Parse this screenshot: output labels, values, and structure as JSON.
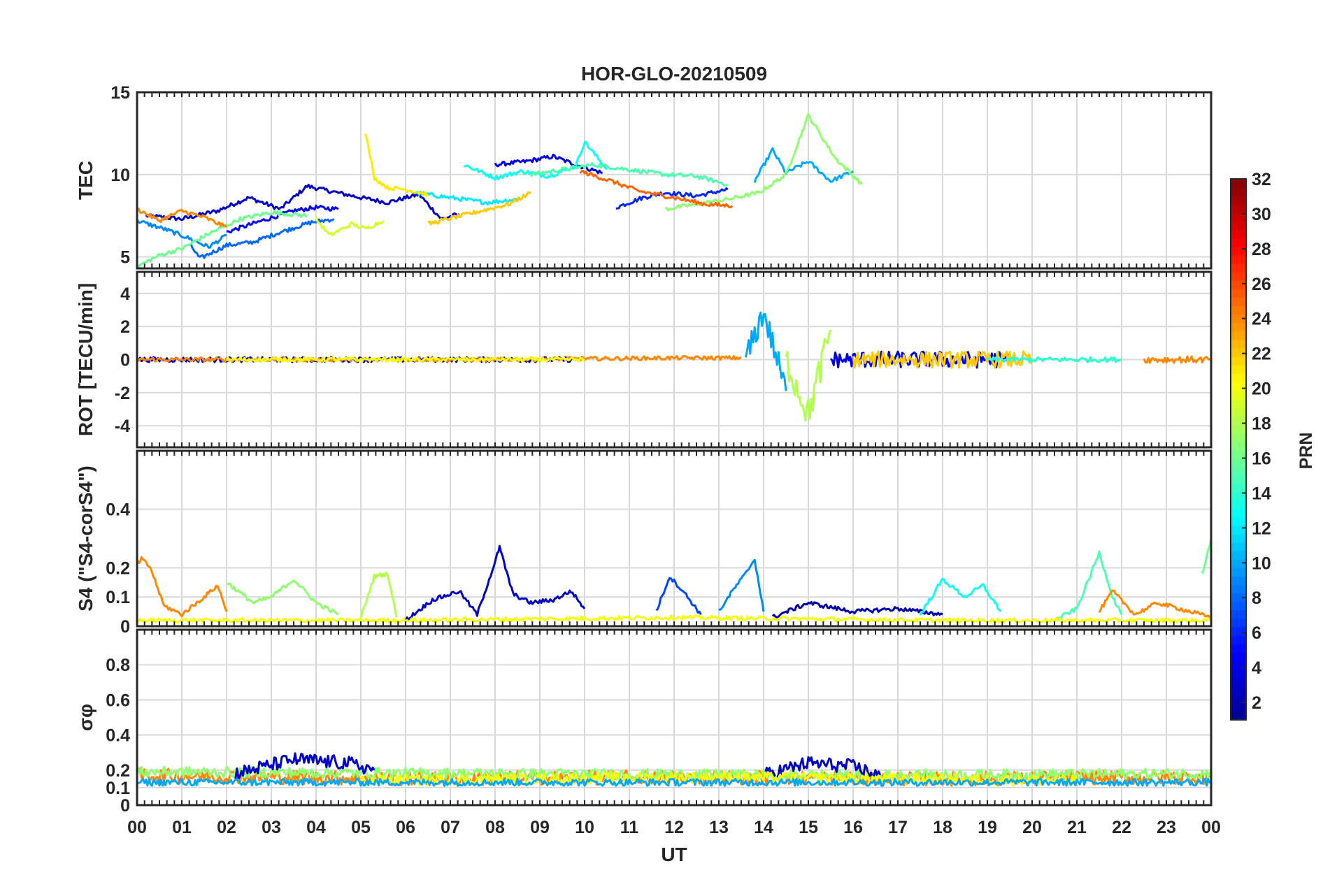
{
  "chart_data": {
    "type": "line",
    "title": "HOR-GLO-20210509",
    "xlabel": "UT",
    "x_tick_labels": [
      "00",
      "01",
      "02",
      "03",
      "04",
      "05",
      "06",
      "07",
      "08",
      "09",
      "10",
      "11",
      "12",
      "13",
      "14",
      "15",
      "16",
      "17",
      "18",
      "19",
      "20",
      "21",
      "22",
      "23",
      "00"
    ],
    "xlim": [
      0,
      24
    ],
    "grid": true,
    "colorbar": {
      "label": "PRN",
      "range": [
        1,
        32
      ],
      "ticks": [
        "2",
        "4",
        "6",
        "8",
        "10",
        "12",
        "14",
        "16",
        "18",
        "20",
        "22",
        "24",
        "26",
        "28",
        "30",
        "32"
      ],
      "colormap": "jet",
      "jet_stops": [
        "#00008f",
        "#0000ff",
        "#00ffff",
        "#ffff00",
        "#ff0000",
        "#800000"
      ]
    },
    "panels": [
      {
        "id": "tec",
        "ylabel": "TEC",
        "ylim": [
          4.3,
          15
        ],
        "yticks": [
          5,
          10,
          15
        ],
        "ytick_labels": [
          "5",
          "10",
          "15"
        ],
        "series": [
          {
            "prn": 3,
            "x": [
              0.2,
              1.0,
              1.8,
              2.5,
              3.2,
              3.8,
              4.3,
              5.0,
              5.6,
              6.3,
              6.8,
              7.2
            ],
            "y": [
              7.5,
              7.3,
              7.8,
              8.6,
              7.9,
              9.3,
              9.0,
              8.6,
              8.3,
              8.8,
              7.3,
              7.6
            ]
          },
          {
            "prn": 4,
            "x": [
              8.0,
              8.7,
              9.3,
              9.8,
              10.4
            ],
            "y": [
              10.6,
              10.8,
              11.1,
              10.6,
              10.1
            ]
          },
          {
            "prn": 5,
            "x": [
              2.0,
              2.8,
              3.5,
              4.0,
              4.5
            ],
            "y": [
              6.5,
              7.2,
              7.8,
              8.0,
              7.9
            ]
          },
          {
            "prn": 6,
            "x": [
              10.7,
              11.3,
              11.8,
              12.5,
              13.2
            ],
            "y": [
              8.0,
              8.6,
              8.9,
              8.7,
              9.1
            ]
          },
          {
            "prn": 8,
            "x": [
              1.2,
              1.4,
              2.0,
              2.6,
              3.2,
              3.9,
              4.4
            ],
            "y": [
              5.7,
              4.9,
              5.7,
              5.9,
              6.5,
              7.1,
              7.3
            ]
          },
          {
            "prn": 9,
            "x": [
              0.0,
              0.6,
              1.1,
              1.6,
              2.0
            ],
            "y": [
              7.2,
              6.7,
              6.2,
              5.6,
              6.3
            ]
          },
          {
            "prn": 10,
            "x": [
              13.8,
              14.2,
              14.5,
              15.0,
              15.5,
              16.0
            ],
            "y": [
              9.6,
              11.5,
              10.1,
              10.8,
              9.6,
              10.2
            ]
          },
          {
            "prn": 12,
            "x": [
              6.2,
              7.0,
              7.8,
              8.5
            ],
            "y": [
              8.9,
              8.6,
              8.3,
              8.5
            ]
          },
          {
            "prn": 13,
            "x": [
              7.3,
              8.0,
              8.6,
              9.2,
              9.8,
              10.0,
              10.5
            ],
            "y": [
              10.6,
              9.8,
              10.2,
              9.9,
              10.5,
              12.0,
              10.3
            ]
          },
          {
            "prn": 15,
            "x": [
              8.8,
              9.5,
              10.2,
              11.0,
              11.8,
              12.5,
              13.2
            ],
            "y": [
              10.0,
              10.3,
              10.6,
              10.3,
              10.0,
              9.9,
              9.4
            ]
          },
          {
            "prn": 16,
            "x": [
              0.0,
              0.5,
              1.0,
              1.6,
              2.3,
              3.0,
              3.8
            ],
            "y": [
              4.4,
              5.1,
              5.5,
              6.4,
              7.3,
              7.7,
              7.5
            ]
          },
          {
            "prn": 17,
            "x": [
              11.8,
              12.5,
              13.2,
              13.9,
              14.5,
              15.0,
              15.6,
              16.2
            ],
            "y": [
              7.9,
              8.2,
              8.5,
              8.9,
              10.0,
              13.6,
              11.0,
              9.4
            ]
          },
          {
            "prn": 19,
            "x": [
              4.0,
              4.3,
              4.8,
              5.1,
              5.5
            ],
            "y": [
              7.3,
              6.3,
              7.0,
              6.7,
              7.2
            ]
          },
          {
            "prn": 21,
            "x": [
              5.1,
              5.3,
              5.6,
              6.0,
              6.5
            ],
            "y": [
              12.6,
              9.8,
              9.2,
              9.1,
              8.8
            ]
          },
          {
            "prn": 22,
            "x": [
              6.5,
              7.1,
              7.7,
              8.3,
              8.8
            ],
            "y": [
              7.0,
              7.4,
              7.8,
              8.2,
              8.9
            ]
          },
          {
            "prn": 24,
            "x": [
              0.0,
              0.5,
              1.0,
              1.5,
              2.0
            ],
            "y": [
              7.9,
              7.2,
              7.8,
              7.4,
              6.8
            ]
          },
          {
            "prn": 25,
            "x": [
              9.9,
              10.6,
              11.2,
              12.0,
              12.7,
              13.3
            ],
            "y": [
              10.2,
              9.6,
              9.0,
              8.6,
              8.2,
              8.1
            ]
          }
        ]
      },
      {
        "id": "rot",
        "ylabel": "ROT [TECU/min]",
        "ylim": [
          -5.3,
          5.3
        ],
        "yticks": [
          -4,
          -2,
          0,
          2,
          4
        ],
        "ytick_labels": [
          "-4",
          "-2",
          "0",
          "2",
          "4"
        ],
        "series": [
          {
            "prn": 3,
            "x": [
              0.0,
              2.0,
              4.0,
              6.0,
              8.0,
              10.0
            ],
            "y": [
              0,
              0,
              0,
              0,
              0,
              0
            ],
            "noise": 0.15
          },
          {
            "prn": 24,
            "x": [
              0.0,
              4.0,
              8.0,
              12.0,
              13.5
            ],
            "y": [
              0,
              0,
              0,
              0.1,
              0.1
            ],
            "noise": 0.12
          },
          {
            "prn": 20,
            "x": [
              2.0,
              5.0,
              8.0,
              10.0
            ],
            "y": [
              0,
              0,
              0,
              0
            ],
            "noise": 0.12
          },
          {
            "prn": 10,
            "x": [
              13.6,
              14.0,
              14.5
            ],
            "y": [
              0,
              2.9,
              -1.9
            ],
            "noise": 0.8
          },
          {
            "prn": 18,
            "x": [
              14.5,
              15.0,
              15.5
            ],
            "y": [
              0,
              -3.3,
              1.8
            ],
            "noise": 1.0
          },
          {
            "prn": 4,
            "x": [
              15.5,
              17.0,
              18.5,
              19.5
            ],
            "y": [
              0,
              0,
              0,
              0
            ],
            "noise": 0.5
          },
          {
            "prn": 22,
            "x": [
              16.0,
              18.0,
              20.0
            ],
            "y": [
              0,
              0,
              0
            ],
            "noise": 0.5
          },
          {
            "prn": 14,
            "x": [
              19.0,
              21.0,
              22.0
            ],
            "y": [
              0,
              0,
              0
            ],
            "noise": 0.15
          },
          {
            "prn": 24,
            "x": [
              22.5,
              24.0
            ],
            "y": [
              0,
              0
            ],
            "noise": 0.2
          }
        ]
      },
      {
        "id": "s4",
        "ylabel": "S4 (\"S4-corS4\")",
        "ylim": [
          0,
          0.6
        ],
        "yticks": [
          0,
          0.1,
          0.2,
          0.4
        ],
        "ytick_labels": [
          "0",
          "0.1",
          "0.2",
          "0.4"
        ],
        "series": [
          {
            "prn": 24,
            "x": [
              0.0,
              0.1,
              0.3,
              0.6,
              1.0,
              1.5,
              1.8,
              2.0
            ],
            "y": [
              0.21,
              0.23,
              0.2,
              0.07,
              0.04,
              0.1,
              0.14,
              0.05
            ]
          },
          {
            "prn": 17,
            "x": [
              2.0,
              2.6,
              3.0,
              3.5,
              4.0,
              4.5
            ],
            "y": [
              0.15,
              0.08,
              0.1,
              0.16,
              0.08,
              0.04
            ]
          },
          {
            "prn": 18,
            "x": [
              5.0,
              5.3,
              5.6,
              5.8
            ],
            "y": [
              0.03,
              0.17,
              0.18,
              0.03
            ]
          },
          {
            "prn": 3,
            "x": [
              6.0,
              6.6,
              7.2,
              7.6,
              8.0,
              8.1,
              8.4,
              8.8,
              9.3,
              9.7,
              10.0
            ],
            "y": [
              0.02,
              0.09,
              0.12,
              0.04,
              0.22,
              0.27,
              0.11,
              0.08,
              0.09,
              0.12,
              0.06
            ]
          },
          {
            "prn": 7,
            "x": [
              11.6,
              11.9,
              12.2,
              12.6
            ],
            "y": [
              0.05,
              0.17,
              0.12,
              0.04
            ]
          },
          {
            "prn": 9,
            "x": [
              13.0,
              13.3,
              13.6,
              13.8,
              14.0
            ],
            "y": [
              0.05,
              0.12,
              0.18,
              0.23,
              0.05
            ]
          },
          {
            "prn": 2,
            "x": [
              14.2,
              15.0,
              16.0,
              17.0,
              18.0
            ],
            "y": [
              0.03,
              0.08,
              0.05,
              0.06,
              0.04
            ]
          },
          {
            "prn": 13,
            "x": [
              17.5,
              18.0,
              18.5,
              18.9,
              19.3
            ],
            "y": [
              0.04,
              0.16,
              0.1,
              0.14,
              0.05
            ]
          },
          {
            "prn": 15,
            "x": [
              20.5,
              21.0,
              21.5,
              21.8,
              22.0
            ],
            "y": [
              0.02,
              0.06,
              0.25,
              0.1,
              0.04
            ]
          },
          {
            "prn": 24,
            "x": [
              21.5,
              21.8,
              22.3,
              22.8,
              23.3,
              24.0
            ],
            "y": [
              0.05,
              0.12,
              0.04,
              0.08,
              0.06,
              0.03
            ]
          },
          {
            "prn": 20,
            "x": [
              0.0,
              6.0,
              12.0,
              18.0,
              24.0
            ],
            "y": [
              0.02,
              0.02,
              0.03,
              0.02,
              0.02
            ]
          },
          {
            "prn": 16,
            "x": [
              23.8,
              24.0
            ],
            "y": [
              0.18,
              0.3
            ]
          }
        ]
      },
      {
        "id": "sigma",
        "ylabel": "σφ",
        "ylim": [
          0,
          1.0
        ],
        "yticks": [
          0,
          0.1,
          0.2,
          0.4,
          0.6,
          0.8
        ],
        "ytick_labels": [
          "0",
          "0.1",
          "0.2",
          "0.4",
          "0.6",
          "0.8"
        ],
        "series": [
          {
            "prn": 24,
            "x": [
              0.0,
              6.0,
              12.0,
              18.0,
              24.0
            ],
            "y": [
              0.17,
              0.15,
              0.16,
              0.15,
              0.16
            ],
            "noise": 0.04
          },
          {
            "prn": 17,
            "x": [
              0.0,
              8.0,
              16.0,
              24.0
            ],
            "y": [
              0.19,
              0.18,
              0.17,
              0.18
            ],
            "noise": 0.03
          },
          {
            "prn": 3,
            "x": [
              2.2,
              3.5,
              4.7,
              5.3
            ],
            "y": [
              0.18,
              0.26,
              0.24,
              0.2
            ],
            "noise": 0.04
          },
          {
            "prn": 3,
            "x": [
              14.0,
              15.0,
              16.0,
              16.6
            ],
            "y": [
              0.17,
              0.24,
              0.22,
              0.17
            ],
            "noise": 0.04
          },
          {
            "prn": 20,
            "x": [
              5.0,
              9.0,
              13.0,
              17.0,
              21.0
            ],
            "y": [
              0.14,
              0.15,
              0.16,
              0.15,
              0.14
            ],
            "noise": 0.03
          },
          {
            "prn": 10,
            "x": [
              0.0,
              12.0,
              24.0
            ],
            "y": [
              0.13,
              0.13,
              0.13
            ],
            "noise": 0.02
          }
        ]
      }
    ]
  }
}
